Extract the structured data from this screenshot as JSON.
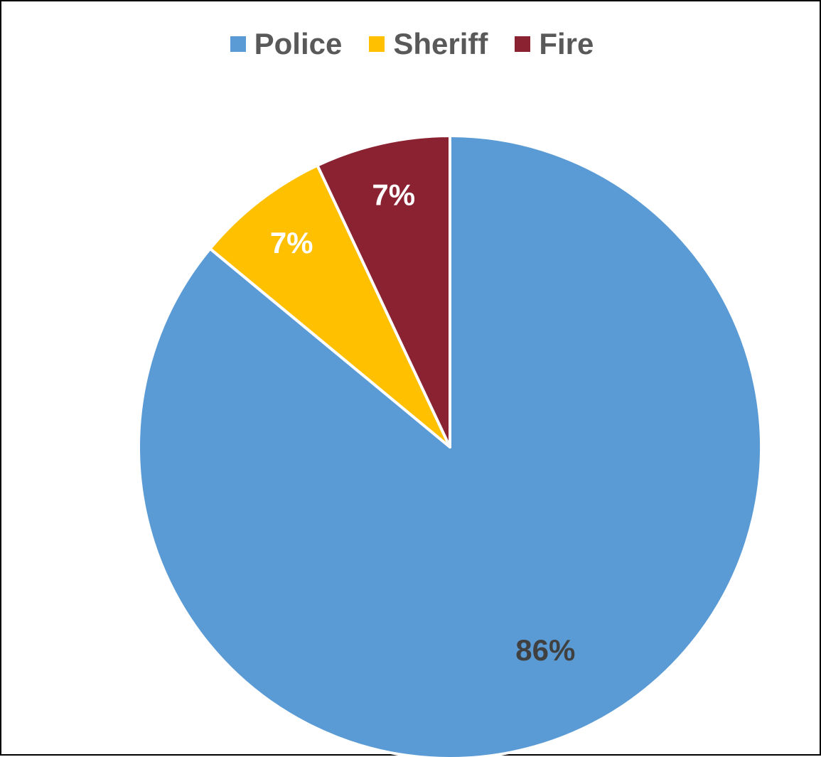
{
  "chart_data": {
    "type": "pie",
    "title": "",
    "categories": [
      "Police",
      "Sheriff",
      "Fire"
    ],
    "values": [
      86,
      7,
      7
    ],
    "data_labels": [
      "86%",
      "7%",
      "7%"
    ],
    "colors": [
      "#5B9BD5",
      "#FFC000",
      "#8B2232"
    ],
    "label_colors": [
      "#404040",
      "#FFFFFF",
      "#FFFFFF"
    ],
    "legend": {
      "position": "top",
      "entries": [
        "Police",
        "Sheriff",
        "Fire"
      ]
    },
    "start_angle": "12 o'clock",
    "direction": "clockwise"
  }
}
